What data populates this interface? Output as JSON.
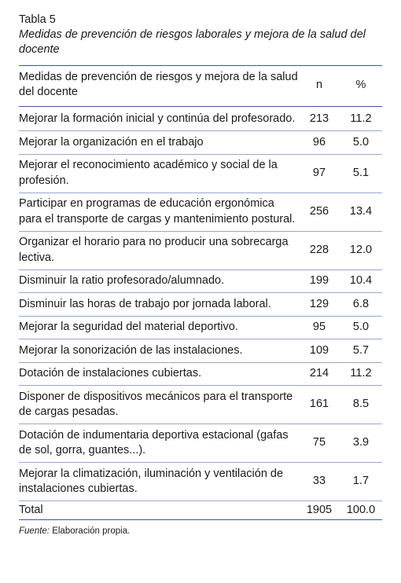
{
  "table_label": "Tabla 5",
  "table_title": "Medidas de prevención de riesgos laborales y mejora de la salud del docente",
  "header": {
    "col_desc": "Medidas de prevención de riesgos y mejora de la salud del docente",
    "col_n": "n",
    "col_pct": "%"
  },
  "rows": [
    {
      "desc": "Mejorar la formación inicial y continúa del profesorado.",
      "n": "213",
      "pct": "11.2"
    },
    {
      "desc": "Mejorar la organización en el trabajo",
      "n": "96",
      "pct": "5.0"
    },
    {
      "desc": "Mejorar el reconocimiento académico y social de la profesión.",
      "n": "97",
      "pct": "5.1"
    },
    {
      "desc": "Participar en programas de educación ergonómica para el transporte de cargas y mantenimiento postural.",
      "n": "256",
      "pct": "13.4"
    },
    {
      "desc": "Organizar el horario para no producir una sobrecarga lectiva.",
      "n": "228",
      "pct": "12.0"
    },
    {
      "desc": "Disminuir la ratio profesorado/alumnado.",
      "n": "199",
      "pct": "10.4"
    },
    {
      "desc": "Disminuir las horas de trabajo por jornada laboral.",
      "n": "129",
      "pct": "6.8"
    },
    {
      "desc": "Mejorar la seguridad del material deportivo.",
      "n": "95",
      "pct": "5.0"
    },
    {
      "desc": "Mejorar la sonorización de las instalaciones.",
      "n": "109",
      "pct": "5.7"
    },
    {
      "desc": "Dotación de instalaciones cubiertas.",
      "n": "214",
      "pct": "11.2"
    },
    {
      "desc": "Disponer de dispositivos mecánicos para el transporte de cargas pesadas.",
      "n": "161",
      "pct": "8.5"
    },
    {
      "desc": "Dotación de indumentaria deportiva estacional (gafas de sol, gorra, guantes...).",
      "n": "75",
      "pct": "3.9"
    },
    {
      "desc": "Mejorar la climatización, iluminación y ventilación de instalaciones cubiertas.",
      "n": "33",
      "pct": "1.7"
    }
  ],
  "total": {
    "label": "Total",
    "n": "1905",
    "pct": "100.0"
  },
  "source": {
    "label": "Fuente:",
    "text": " Elaboración propia."
  }
}
